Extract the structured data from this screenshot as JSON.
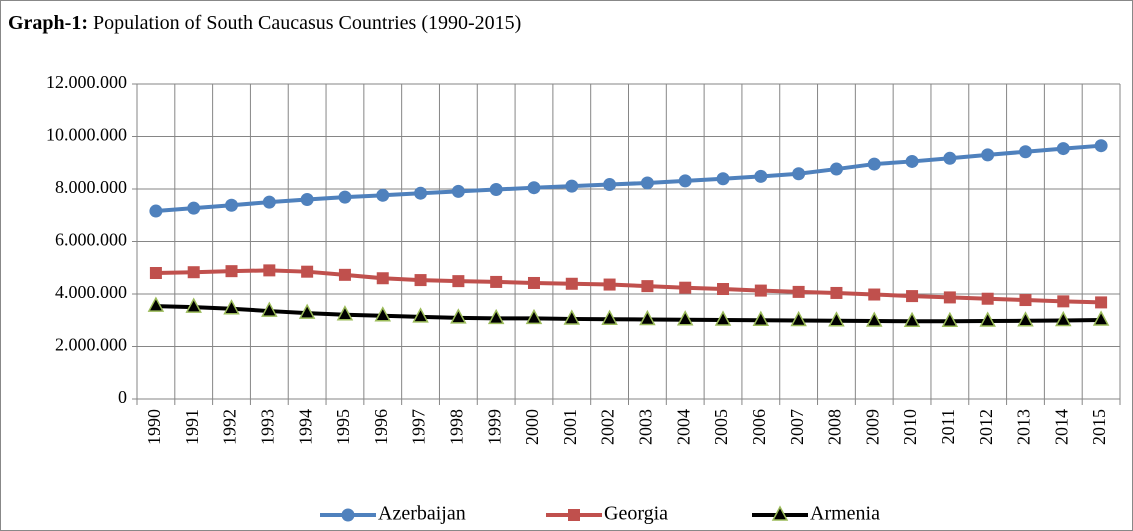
{
  "chart_data": {
    "type": "line",
    "title_label": "Graph-1:",
    "title": "Population of South Caucasus Countries (1990-2015)",
    "categories": [
      "1990",
      "1991",
      "1992",
      "1993",
      "1994",
      "1995",
      "1996",
      "1997",
      "1998",
      "1999",
      "2000",
      "2001",
      "2002",
      "2003",
      "2004",
      "2005",
      "2006",
      "2007",
      "2008",
      "2009",
      "2010",
      "2011",
      "2012",
      "2013",
      "2014",
      "2015"
    ],
    "series": [
      {
        "name": "Azerbaijan",
        "color": "#4f81bd",
        "marker": "circle",
        "values": [
          7160000,
          7270000,
          7380000,
          7500000,
          7600000,
          7690000,
          7760000,
          7840000,
          7910000,
          7980000,
          8050000,
          8110000,
          8170000,
          8230000,
          8310000,
          8390000,
          8480000,
          8580000,
          8760000,
          8950000,
          9050000,
          9170000,
          9300000,
          9420000,
          9540000,
          9650000
        ]
      },
      {
        "name": "Georgia",
        "color": "#c0504d",
        "marker": "square",
        "values": [
          4800000,
          4830000,
          4870000,
          4900000,
          4850000,
          4730000,
          4600000,
          4530000,
          4490000,
          4460000,
          4420000,
          4390000,
          4360000,
          4300000,
          4240000,
          4190000,
          4130000,
          4080000,
          4040000,
          3980000,
          3920000,
          3870000,
          3820000,
          3770000,
          3720000,
          3680000
        ]
      },
      {
        "name": "Armenia",
        "color": "#000000",
        "marker": "triangle",
        "marker_fill": "#9bbb59",
        "values": [
          3540000,
          3500000,
          3440000,
          3350000,
          3270000,
          3210000,
          3170000,
          3130000,
          3090000,
          3070000,
          3070000,
          3050000,
          3040000,
          3030000,
          3020000,
          3010000,
          3000000,
          2990000,
          2980000,
          2970000,
          2960000,
          2960000,
          2970000,
          2980000,
          2990000,
          3010000
        ]
      }
    ],
    "ylim": [
      0,
      12000000
    ],
    "yticks": [
      0,
      {
        "value": 2000000,
        "label": "2.000.000"
      },
      {
        "value": 4000000,
        "label": "4.000.000"
      },
      {
        "value": 6000000,
        "label": "6.000.000"
      },
      {
        "value": 8000000,
        "label": "8.000.000"
      },
      {
        "value": 10000000,
        "label": "10.000.000"
      },
      {
        "value": 12000000,
        "label": "12.000.000"
      }
    ],
    "grid": true,
    "legend": "bottom"
  }
}
